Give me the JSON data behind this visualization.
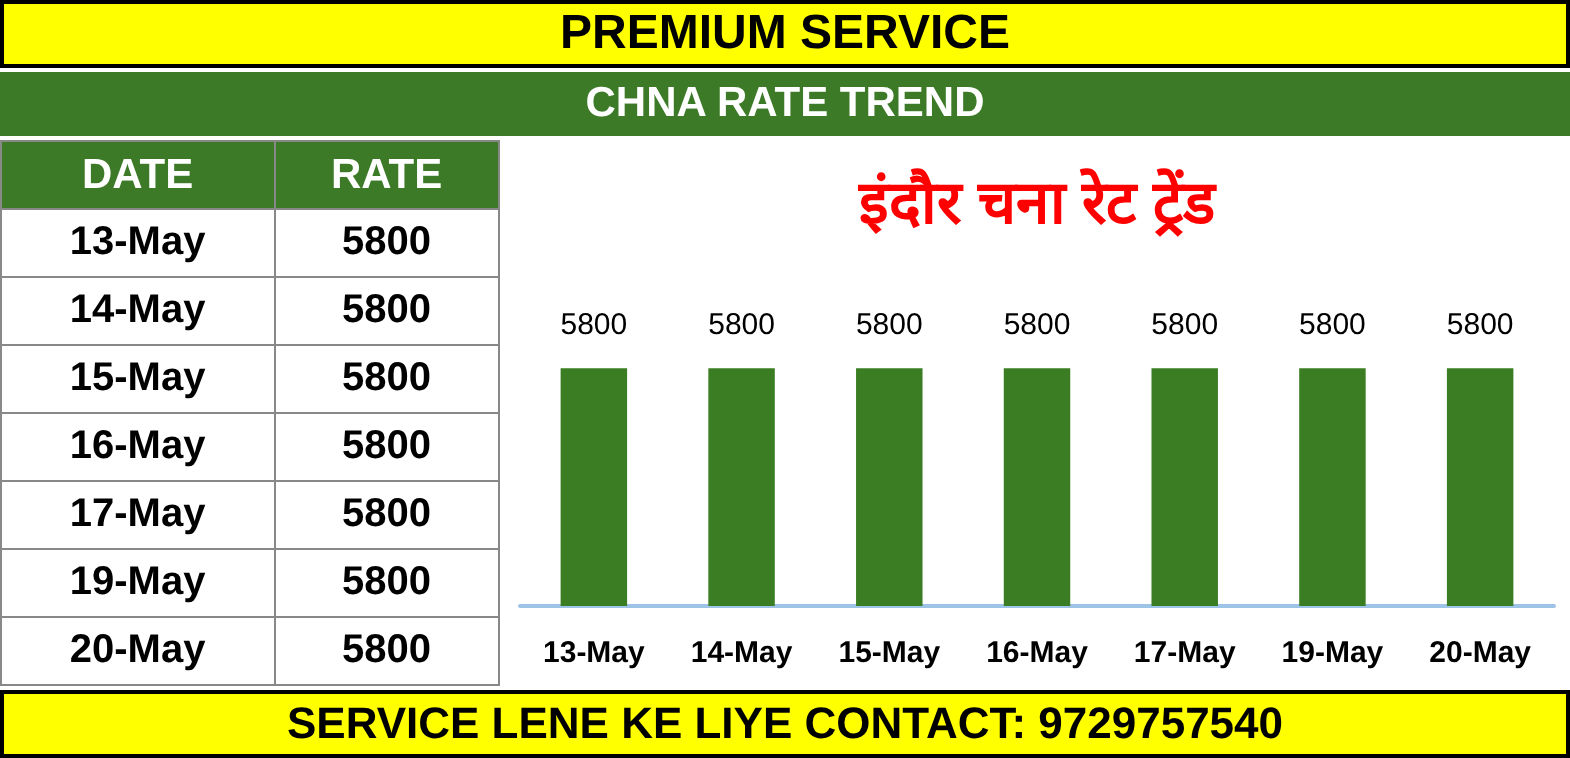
{
  "chart_data": [
    {
      "type": "other",
      "annotations": [
        "DATE",
        "RATE"
      ],
      "categories": [
        "13-May",
        "14-May",
        "15-May",
        "16-May",
        "17-May",
        "19-May",
        "20-May"
      ],
      "values": [
        5800,
        5800,
        5800,
        5800,
        5800,
        5800,
        5800
      ],
      "data_labels": true
    },
    {
      "type": "bar",
      "title": "इंदौर चना रेट ट्रेंड",
      "subtitle": "CHNA RATE TREND",
      "categories": [
        "13-May",
        "14-May",
        "15-May",
        "16-May",
        "17-May",
        "19-May",
        "20-May"
      ],
      "values": [
        5800,
        5800,
        5800,
        5800,
        5800,
        5800,
        5800
      ],
      "color": "#3a7d22",
      "data_labels": true,
      "annotations": [
        "PREMIUM SERVICE",
        "SERVICE LENE KE LIYE CONTACT: 9729757540"
      ]
    }
  ]
}
